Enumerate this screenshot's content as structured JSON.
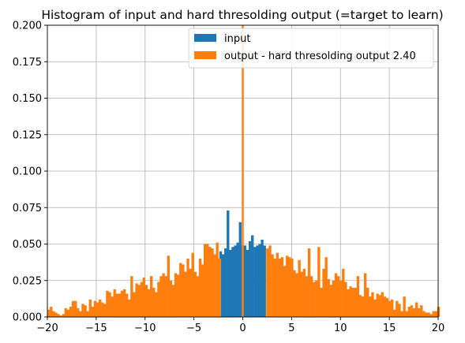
{
  "chart_data": {
    "type": "bar",
    "title": "Histogram of input and hard thresolding output (=target to learn)",
    "xlim": [
      -20,
      20
    ],
    "ylim": [
      0,
      0.2
    ],
    "grid": true,
    "legend_position": "top-right",
    "x_ticks": [
      -20,
      -15,
      -10,
      -5,
      0,
      5,
      10,
      15,
      20
    ],
    "x_tick_labels": [
      "−20",
      "−15",
      "−10",
      "−5",
      "0",
      "5",
      "10",
      "15",
      "20"
    ],
    "y_ticks": [
      0,
      0.025,
      0.05,
      0.075,
      0.1,
      0.125,
      0.15,
      0.175,
      0.2
    ],
    "y_tick_labels": [
      "0.000",
      "0.025",
      "0.050",
      "0.075",
      "0.100",
      "0.125",
      "0.150",
      "0.175",
      "0.200"
    ],
    "bin_width": 0.25,
    "threshold": 2.4,
    "series": [
      {
        "name": "input",
        "color": "#1f77b4",
        "bin_start": -2.4,
        "values": [
          0.045,
          0.043,
          0.047,
          0.073,
          0.046,
          0.048,
          0.049,
          0.051,
          0.065,
          0.049,
          0.049,
          0.046,
          0.052,
          0.056,
          0.048,
          0.049,
          0.05,
          0.053,
          0.049
        ]
      },
      {
        "name": "output - hard thresolding output 2.40",
        "color": "#ff7f0e",
        "bin_start": -20,
        "left_values": [
          0.005,
          0.007,
          0.004,
          0.003,
          0.002,
          0.001,
          0.002,
          0.006,
          0.005,
          0.007,
          0.011,
          0.011,
          0.006,
          0.004,
          0.009,
          0.008,
          0.004,
          0.012,
          0.007,
          0.011,
          0.01,
          0.012,
          0.01,
          0.009,
          0.018,
          0.017,
          0.014,
          0.019,
          0.016,
          0.016,
          0.018,
          0.019,
          0.016,
          0.012,
          0.028,
          0.017,
          0.023,
          0.022,
          0.024,
          0.027,
          0.022,
          0.019,
          0.028,
          0.02,
          0.017,
          0.024,
          0.028,
          0.03,
          0.028,
          0.042,
          0.025,
          0.022,
          0.03,
          0.029,
          0.037,
          0.036,
          0.031,
          0.04,
          0.033,
          0.044,
          0.031,
          0.028,
          0.04,
          0.036,
          0.05,
          0.05,
          0.048,
          0.047,
          0.043,
          0.051,
          0.04
        ],
        "right_values": [
          0.047,
          0.049,
          0.043,
          0.04,
          0.044,
          0.04,
          0.041,
          0.035,
          0.042,
          0.041,
          0.04,
          0.032,
          0.03,
          0.039,
          0.031,
          0.033,
          0.028,
          0.047,
          0.028,
          0.024,
          0.025,
          0.048,
          0.02,
          0.033,
          0.041,
          0.026,
          0.022,
          0.025,
          0.03,
          0.028,
          0.025,
          0.033,
          0.024,
          0.019,
          0.021,
          0.02,
          0.02,
          0.028,
          0.015,
          0.014,
          0.03,
          0.02,
          0.014,
          0.017,
          0.012,
          0.016,
          0.015,
          0.017,
          0.014,
          0.013,
          0.011,
          0.012,
          0.005,
          0.011,
          0.009,
          0.004,
          0.014,
          0.004,
          0.007,
          0.008,
          0.006,
          0.01,
          0.006,
          0.008,
          0.004,
          0.003,
          0.003,
          0.002,
          0.004,
          0.004,
          0.007
        ]
      }
    ],
    "spike": {
      "x": 0,
      "value": 0.2
    }
  }
}
